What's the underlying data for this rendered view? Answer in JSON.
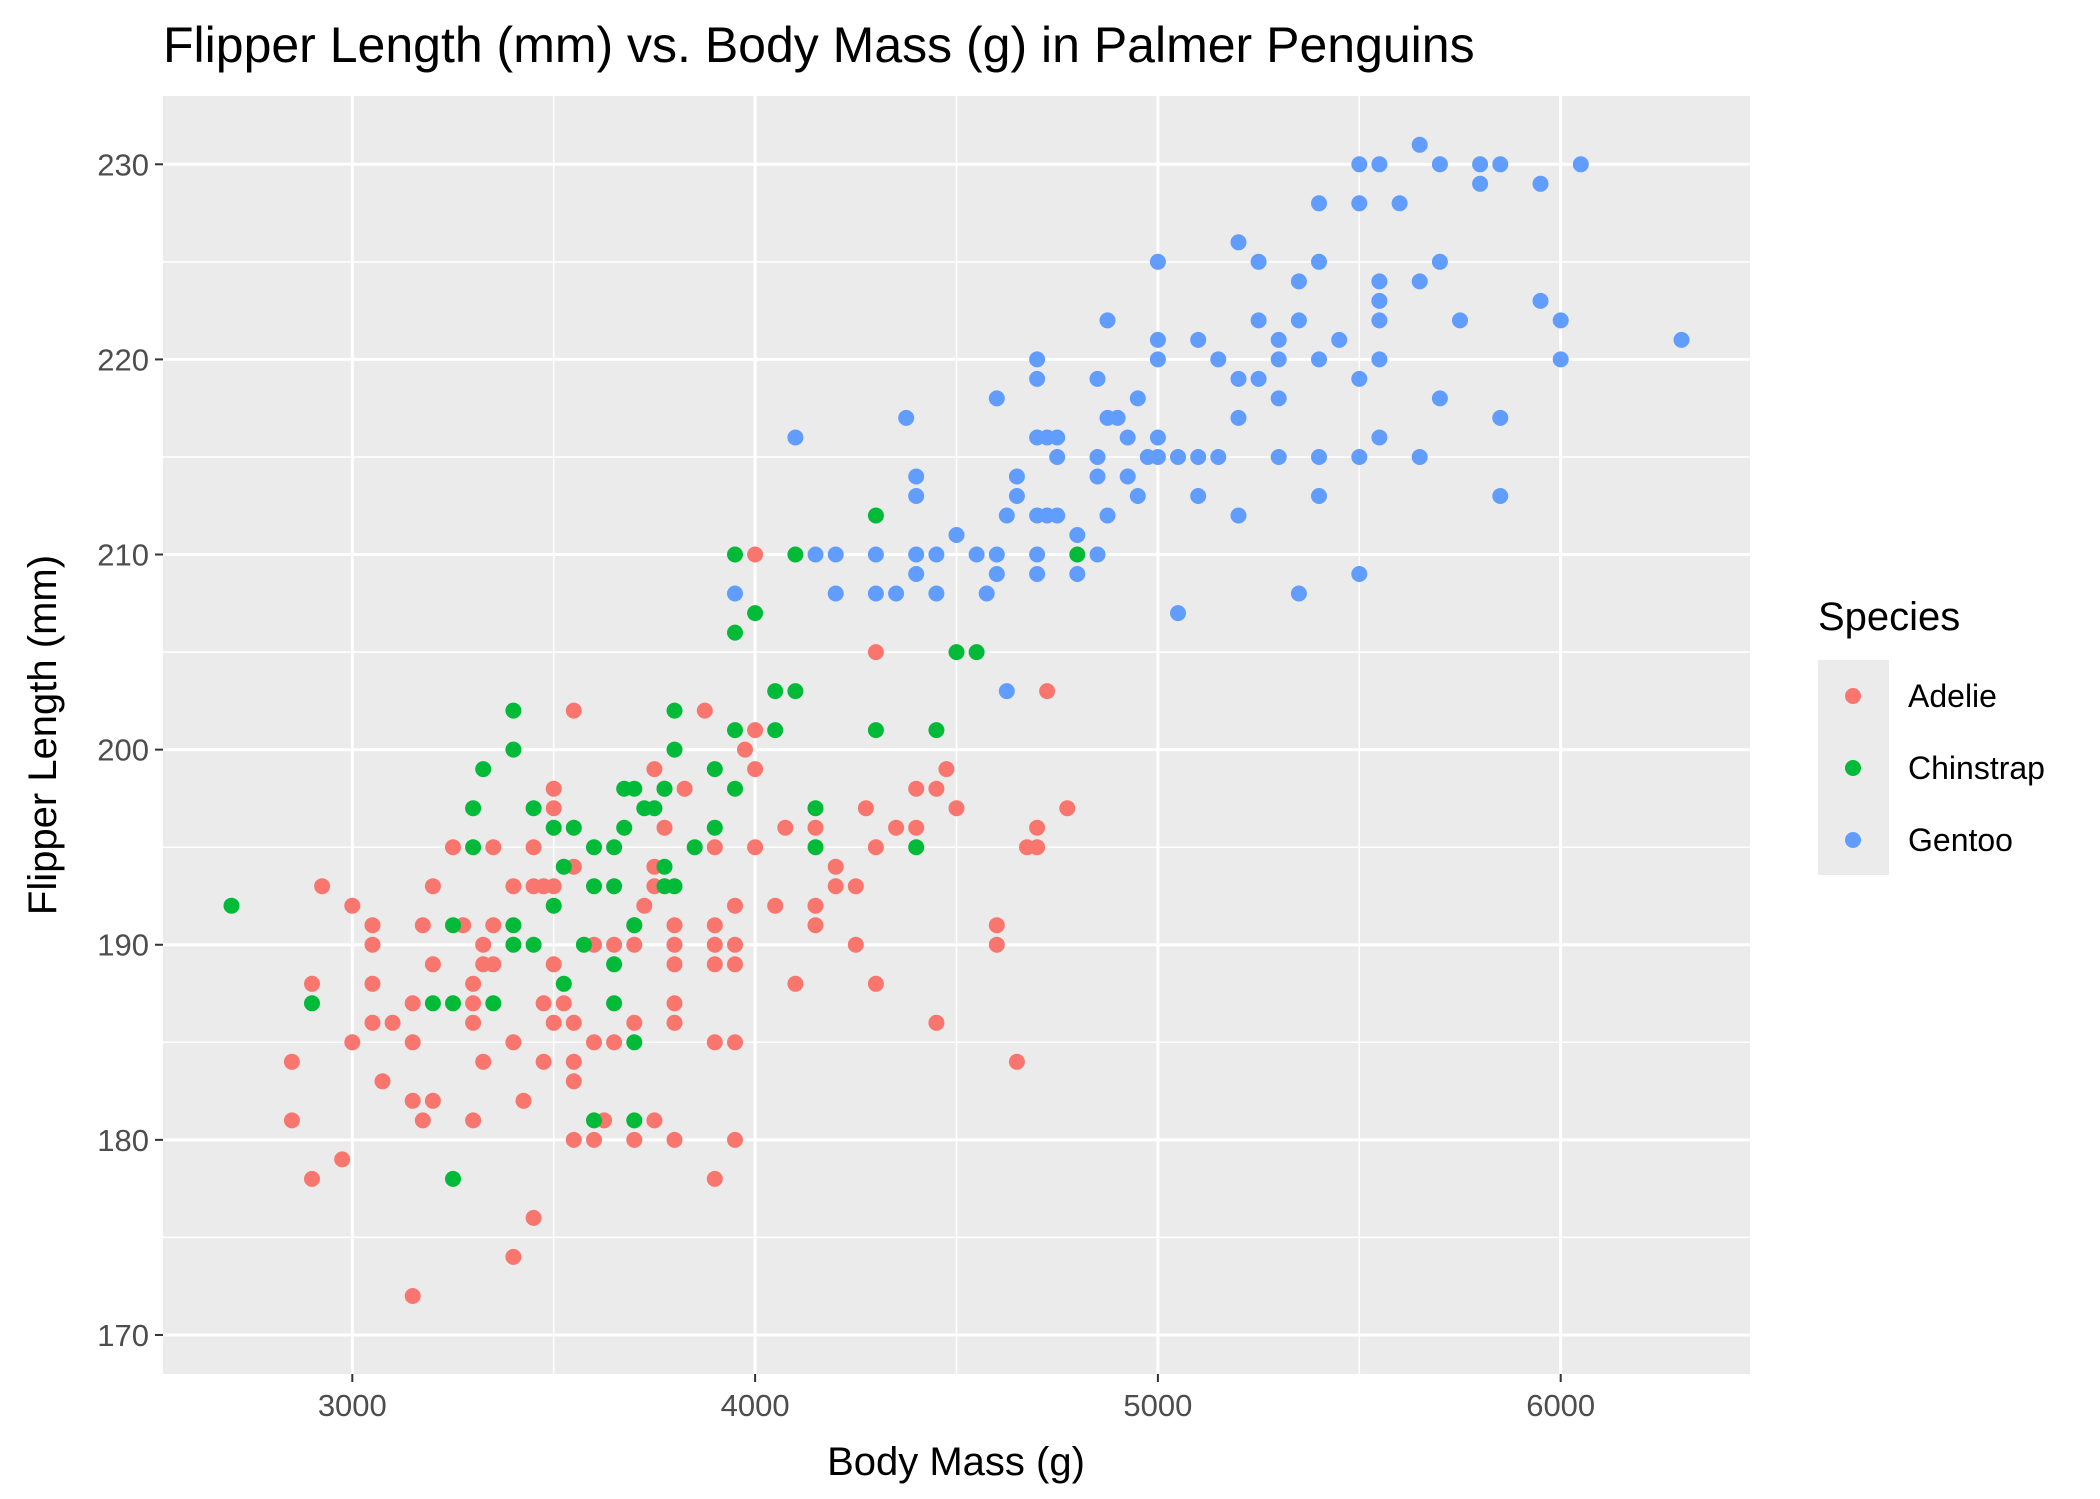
{
  "chart_data": {
    "type": "scatter",
    "title": "Flipper Length (mm) vs. Body Mass (g) in Palmer Penguins",
    "xlabel": "Body Mass (g)",
    "ylabel": "Flipper Length (mm)",
    "xlim": [
      2530,
      6470
    ],
    "ylim": [
      168,
      233.5
    ],
    "x_ticks": [
      3000,
      4000,
      5000,
      6000
    ],
    "y_ticks": [
      170,
      180,
      190,
      200,
      210,
      220,
      230
    ],
    "grid": true,
    "legend": {
      "title": "Species",
      "position": "right"
    },
    "series": [
      {
        "name": "Adelie",
        "color": "#F8766D",
        "points": [
          [
            2850,
            184
          ],
          [
            2850,
            181
          ],
          [
            2900,
            188
          ],
          [
            2900,
            178
          ],
          [
            2925,
            193
          ],
          [
            2975,
            179
          ],
          [
            3000,
            192
          ],
          [
            3000,
            185
          ],
          [
            3050,
            191
          ],
          [
            3050,
            190
          ],
          [
            3050,
            188
          ],
          [
            3050,
            186
          ],
          [
            3075,
            183
          ],
          [
            3100,
            186
          ],
          [
            3150,
            187
          ],
          [
            3150,
            185
          ],
          [
            3150,
            182
          ],
          [
            3150,
            172
          ],
          [
            3175,
            191
          ],
          [
            3175,
            181
          ],
          [
            3200,
            193
          ],
          [
            3200,
            189
          ],
          [
            3200,
            182
          ],
          [
            3250,
            195
          ],
          [
            3275,
            191
          ],
          [
            3300,
            188
          ],
          [
            3300,
            187
          ],
          [
            3300,
            186
          ],
          [
            3300,
            181
          ],
          [
            3325,
            190
          ],
          [
            3325,
            189
          ],
          [
            3325,
            184
          ],
          [
            3350,
            195
          ],
          [
            3350,
            191
          ],
          [
            3350,
            189
          ],
          [
            3400,
            193
          ],
          [
            3400,
            185
          ],
          [
            3400,
            174
          ],
          [
            3425,
            182
          ],
          [
            3450,
            195
          ],
          [
            3450,
            193
          ],
          [
            3450,
            176
          ],
          [
            3475,
            193
          ],
          [
            3475,
            187
          ],
          [
            3475,
            184
          ],
          [
            3500,
            198
          ],
          [
            3500,
            197
          ],
          [
            3500,
            193
          ],
          [
            3500,
            189
          ],
          [
            3500,
            186
          ],
          [
            3525,
            187
          ],
          [
            3550,
            202
          ],
          [
            3550,
            194
          ],
          [
            3550,
            186
          ],
          [
            3550,
            184
          ],
          [
            3550,
            183
          ],
          [
            3550,
            180
          ],
          [
            3600,
            190
          ],
          [
            3600,
            185
          ],
          [
            3600,
            180
          ],
          [
            3625,
            181
          ],
          [
            3650,
            190
          ],
          [
            3650,
            185
          ],
          [
            3700,
            191
          ],
          [
            3700,
            190
          ],
          [
            3700,
            186
          ],
          [
            3700,
            180
          ],
          [
            3725,
            192
          ],
          [
            3750,
            199
          ],
          [
            3750,
            194
          ],
          [
            3750,
            193
          ],
          [
            3750,
            181
          ],
          [
            3775,
            198
          ],
          [
            3775,
            196
          ],
          [
            3800,
            191
          ],
          [
            3800,
            190
          ],
          [
            3800,
            189
          ],
          [
            3800,
            187
          ],
          [
            3800,
            186
          ],
          [
            3800,
            180
          ],
          [
            3825,
            198
          ],
          [
            3875,
            202
          ],
          [
            3900,
            195
          ],
          [
            3900,
            191
          ],
          [
            3900,
            190
          ],
          [
            3900,
            189
          ],
          [
            3900,
            185
          ],
          [
            3900,
            178
          ],
          [
            3950,
            192
          ],
          [
            3950,
            190
          ],
          [
            3950,
            189
          ],
          [
            3950,
            185
          ],
          [
            3950,
            180
          ],
          [
            3975,
            200
          ],
          [
            4000,
            210
          ],
          [
            4000,
            201
          ],
          [
            4000,
            199
          ],
          [
            4000,
            195
          ],
          [
            4050,
            192
          ],
          [
            4075,
            196
          ],
          [
            4100,
            188
          ],
          [
            4150,
            196
          ],
          [
            4150,
            192
          ],
          [
            4150,
            191
          ],
          [
            4200,
            194
          ],
          [
            4200,
            193
          ],
          [
            4250,
            193
          ],
          [
            4250,
            190
          ],
          [
            4275,
            197
          ],
          [
            4300,
            205
          ],
          [
            4300,
            195
          ],
          [
            4300,
            188
          ],
          [
            4350,
            196
          ],
          [
            4400,
            198
          ],
          [
            4400,
            196
          ],
          [
            4450,
            198
          ],
          [
            4450,
            186
          ],
          [
            4475,
            199
          ],
          [
            4500,
            197
          ],
          [
            4600,
            191
          ],
          [
            4600,
            190
          ],
          [
            4650,
            184
          ],
          [
            4675,
            195
          ],
          [
            4700,
            195
          ],
          [
            4700,
            196
          ],
          [
            4725,
            203
          ],
          [
            4775,
            197
          ]
        ]
      },
      {
        "name": "Chinstrap",
        "color": "#00BA38",
        "points": [
          [
            2700,
            192
          ],
          [
            2900,
            187
          ],
          [
            3200,
            187
          ],
          [
            3250,
            191
          ],
          [
            3250,
            187
          ],
          [
            3250,
            178
          ],
          [
            3300,
            197
          ],
          [
            3300,
            195
          ],
          [
            3325,
            199
          ],
          [
            3350,
            187
          ],
          [
            3400,
            202
          ],
          [
            3400,
            200
          ],
          [
            3400,
            191
          ],
          [
            3400,
            190
          ],
          [
            3450,
            197
          ],
          [
            3450,
            190
          ],
          [
            3500,
            196
          ],
          [
            3500,
            192
          ],
          [
            3525,
            194
          ],
          [
            3525,
            188
          ],
          [
            3550,
            196
          ],
          [
            3575,
            190
          ],
          [
            3600,
            195
          ],
          [
            3600,
            193
          ],
          [
            3600,
            181
          ],
          [
            3650,
            195
          ],
          [
            3650,
            193
          ],
          [
            3650,
            189
          ],
          [
            3650,
            187
          ],
          [
            3675,
            198
          ],
          [
            3675,
            196
          ],
          [
            3700,
            198
          ],
          [
            3700,
            191
          ],
          [
            3700,
            185
          ],
          [
            3700,
            181
          ],
          [
            3725,
            197
          ],
          [
            3750,
            197
          ],
          [
            3775,
            198
          ],
          [
            3775,
            194
          ],
          [
            3775,
            193
          ],
          [
            3800,
            202
          ],
          [
            3800,
            200
          ],
          [
            3800,
            193
          ],
          [
            3850,
            195
          ],
          [
            3900,
            199
          ],
          [
            3900,
            196
          ],
          [
            3950,
            210
          ],
          [
            3950,
            206
          ],
          [
            3950,
            201
          ],
          [
            3950,
            198
          ],
          [
            4000,
            207
          ],
          [
            4050,
            203
          ],
          [
            4050,
            201
          ],
          [
            4100,
            210
          ],
          [
            4100,
            203
          ],
          [
            4150,
            197
          ],
          [
            4150,
            195
          ],
          [
            4300,
            212
          ],
          [
            4300,
            201
          ],
          [
            4400,
            195
          ],
          [
            4450,
            201
          ],
          [
            4500,
            205
          ],
          [
            4550,
            205
          ],
          [
            4800,
            210
          ]
        ]
      },
      {
        "name": "Gentoo",
        "color": "#619CFF",
        "points": [
          [
            3950,
            208
          ],
          [
            4100,
            216
          ],
          [
            4150,
            210
          ],
          [
            4200,
            210
          ],
          [
            4200,
            208
          ],
          [
            4300,
            210
          ],
          [
            4300,
            208
          ],
          [
            4350,
            208
          ],
          [
            4375,
            217
          ],
          [
            4400,
            214
          ],
          [
            4400,
            213
          ],
          [
            4400,
            210
          ],
          [
            4400,
            209
          ],
          [
            4450,
            210
          ],
          [
            4450,
            208
          ],
          [
            4500,
            211
          ],
          [
            4550,
            210
          ],
          [
            4575,
            208
          ],
          [
            4600,
            218
          ],
          [
            4600,
            210
          ],
          [
            4600,
            209
          ],
          [
            4625,
            212
          ],
          [
            4625,
            203
          ],
          [
            4650,
            214
          ],
          [
            4650,
            213
          ],
          [
            4700,
            220
          ],
          [
            4700,
            219
          ],
          [
            4700,
            216
          ],
          [
            4700,
            212
          ],
          [
            4700,
            210
          ],
          [
            4700,
            209
          ],
          [
            4725,
            216
          ],
          [
            4725,
            212
          ],
          [
            4750,
            216
          ],
          [
            4750,
            215
          ],
          [
            4750,
            212
          ],
          [
            4800,
            211
          ],
          [
            4800,
            209
          ],
          [
            4850,
            219
          ],
          [
            4850,
            215
          ],
          [
            4850,
            214
          ],
          [
            4850,
            210
          ],
          [
            4875,
            222
          ],
          [
            4875,
            217
          ],
          [
            4875,
            212
          ],
          [
            4900,
            217
          ],
          [
            4925,
            216
          ],
          [
            4925,
            214
          ],
          [
            4950,
            218
          ],
          [
            4950,
            213
          ],
          [
            4975,
            215
          ],
          [
            5000,
            225
          ],
          [
            5000,
            221
          ],
          [
            5000,
            220
          ],
          [
            5000,
            216
          ],
          [
            5000,
            215
          ],
          [
            5050,
            215
          ],
          [
            5050,
            207
          ],
          [
            5100,
            221
          ],
          [
            5100,
            215
          ],
          [
            5100,
            213
          ],
          [
            5150,
            220
          ],
          [
            5150,
            215
          ],
          [
            5200,
            226
          ],
          [
            5200,
            219
          ],
          [
            5200,
            217
          ],
          [
            5200,
            212
          ],
          [
            5250,
            225
          ],
          [
            5250,
            222
          ],
          [
            5250,
            219
          ],
          [
            5300,
            221
          ],
          [
            5300,
            220
          ],
          [
            5300,
            218
          ],
          [
            5300,
            215
          ],
          [
            5350,
            224
          ],
          [
            5350,
            222
          ],
          [
            5350,
            208
          ],
          [
            5400,
            228
          ],
          [
            5400,
            225
          ],
          [
            5400,
            220
          ],
          [
            5400,
            215
          ],
          [
            5400,
            213
          ],
          [
            5450,
            221
          ],
          [
            5500,
            230
          ],
          [
            5500,
            228
          ],
          [
            5500,
            219
          ],
          [
            5500,
            215
          ],
          [
            5500,
            209
          ],
          [
            5550,
            230
          ],
          [
            5550,
            224
          ],
          [
            5550,
            223
          ],
          [
            5550,
            222
          ],
          [
            5550,
            220
          ],
          [
            5550,
            216
          ],
          [
            5600,
            228
          ],
          [
            5650,
            231
          ],
          [
            5650,
            224
          ],
          [
            5650,
            215
          ],
          [
            5700,
            230
          ],
          [
            5700,
            225
          ],
          [
            5700,
            218
          ],
          [
            5750,
            222
          ],
          [
            5800,
            230
          ],
          [
            5800,
            229
          ],
          [
            5850,
            230
          ],
          [
            5850,
            217
          ],
          [
            5850,
            213
          ],
          [
            5950,
            229
          ],
          [
            5950,
            223
          ],
          [
            6000,
            222
          ],
          [
            6000,
            220
          ],
          [
            6050,
            230
          ],
          [
            6300,
            221
          ]
        ]
      }
    ]
  }
}
